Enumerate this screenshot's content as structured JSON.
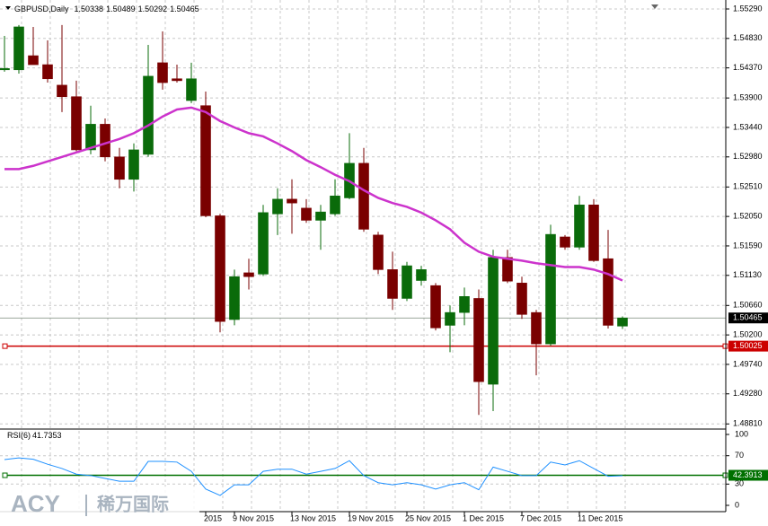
{
  "chart_data": {
    "type": "candlestick",
    "title": "GBPUSD,Daily",
    "categories": [
      null,
      null,
      null,
      null,
      null,
      null,
      null,
      null,
      null,
      null,
      null,
      null,
      null,
      null,
      "2015",
      null,
      "9 Nov 2015",
      null,
      null,
      null,
      "13 Nov 2015",
      null,
      null,
      null,
      "19 Nov 2015",
      null,
      null,
      null,
      "25 Nov 2015",
      null,
      null,
      null,
      "1 Dec 2015",
      null,
      null,
      null,
      "7 Dec 2015",
      null,
      null,
      null,
      "11 Dec 2015",
      null,
      null,
      null
    ],
    "open": [
      1.5434,
      1.5434,
      1.5456,
      1.5442,
      1.541,
      1.5392,
      1.5309,
      1.5349,
      1.5298,
      1.5263,
      1.5302,
      1.5445,
      1.542,
      1.5386,
      1.5378,
      1.5206,
      1.5044,
      1.5117,
      1.5115,
      1.5209,
      1.5232,
      1.5218,
      1.5199,
      1.5209,
      1.5234,
      1.5288,
      1.5176,
      1.5122,
      1.5077,
      1.5105,
      1.5097,
      1.5035,
      1.5055,
      1.5077,
      1.4943,
      1.5141,
      1.5101,
      1.5055,
      1.5006,
      1.5173,
      1.5157,
      1.5223,
      1.5139,
      1.50338
    ],
    "high": [
      1.5487,
      1.5504,
      1.5501,
      1.548,
      1.5504,
      1.5417,
      1.5378,
      1.5358,
      1.5312,
      1.5319,
      1.5473,
      1.5494,
      1.5442,
      1.5445,
      1.54,
      1.5209,
      1.5122,
      1.5139,
      1.5223,
      1.5249,
      1.5263,
      1.5232,
      1.5223,
      1.5263,
      1.5335,
      1.5312,
      1.5181,
      1.515,
      1.5134,
      1.5128,
      1.5101,
      1.5066,
      1.5094,
      1.5091,
      1.5153,
      1.5153,
      1.5111,
      1.5059,
      1.5192,
      1.5176,
      1.5237,
      1.5232,
      1.5184,
      1.50489
    ],
    "low": [
      1.5431,
      1.5428,
      1.5442,
      1.5414,
      1.5368,
      1.5307,
      1.5302,
      1.5291,
      1.5249,
      1.5244,
      1.5298,
      1.5403,
      1.5414,
      1.5382,
      1.5204,
      1.5024,
      1.5035,
      1.5091,
      1.5112,
      1.5176,
      1.5178,
      1.5195,
      1.5153,
      1.5206,
      1.5232,
      1.5181,
      1.5115,
      1.5059,
      1.5073,
      1.5097,
      1.5027,
      1.4993,
      1.5035,
      1.4895,
      1.4901,
      1.5101,
      1.5045,
      1.4957,
      1.5003,
      1.5153,
      1.5153,
      1.5134,
      1.503,
      1.50292
    ],
    "close": [
      1.5436,
      1.5501,
      1.5442,
      1.542,
      1.5392,
      1.5309,
      1.5349,
      1.5298,
      1.5263,
      1.5309,
      1.5424,
      1.5414,
      1.5417,
      1.542,
      1.5206,
      1.5041,
      1.5111,
      1.5111,
      1.5211,
      1.5232,
      1.5226,
      1.5199,
      1.5212,
      1.5237,
      1.5288,
      1.5185,
      1.5122,
      1.5077,
      1.5128,
      1.5122,
      1.5031,
      1.5055,
      1.508,
      1.4947,
      1.5141,
      1.5104,
      1.5052,
      1.5006,
      1.5177,
      1.5157,
      1.5223,
      1.5136,
      1.5035,
      1.50465
    ],
    "up_color": "#0a6b0a",
    "down_color": "#7a0000",
    "ma": {
      "color": "#cc33cc",
      "values": [
        1.5279,
        1.5279,
        1.5284,
        1.5291,
        1.5298,
        1.5305,
        1.5312,
        1.5319,
        1.5326,
        1.5335,
        1.5347,
        1.5361,
        1.5372,
        1.5375,
        1.5368,
        1.5354,
        1.5344,
        1.5335,
        1.533,
        1.5319,
        1.5307,
        1.5293,
        1.5282,
        1.527,
        1.526,
        1.5246,
        1.5234,
        1.5226,
        1.522,
        1.5211,
        1.5199,
        1.5185,
        1.5164,
        1.515,
        1.5142,
        1.5139,
        1.5136,
        1.5132,
        1.5129,
        1.5126,
        1.5126,
        1.5122,
        1.5115,
        1.5105
      ]
    },
    "level": 1.50025,
    "level_color": "#cc0000",
    "ylim": [
      1.4873,
      1.5543
    ],
    "yticks": [
      {
        "value": 1.5529,
        "label": "1.55290"
      },
      {
        "value": 1.5483,
        "label": "1.54830"
      },
      {
        "value": 1.5437,
        "label": "1.54370"
      },
      {
        "value": 1.539,
        "label": "1.53900"
      },
      {
        "value": 1.5344,
        "label": "1.53440"
      },
      {
        "value": 1.5298,
        "label": "1.52980"
      },
      {
        "value": 1.5251,
        "label": "1.52510"
      },
      {
        "value": 1.5205,
        "label": "1.52050"
      },
      {
        "value": 1.5159,
        "label": "1.51590"
      },
      {
        "value": 1.5113,
        "label": "1.51130"
      },
      {
        "value": 1.5066,
        "label": "1.50660"
      },
      {
        "value": 1.502,
        "label": "1.50200"
      },
      {
        "value": 1.4974,
        "label": "1.49740"
      },
      {
        "value": 1.4928,
        "label": "1.49280"
      },
      {
        "value": 1.4881,
        "label": "1.48810"
      }
    ],
    "grid": true,
    "rsi": {
      "title": "RSI(6)",
      "color": "#1e90ff",
      "values": [
        64.6,
        67,
        65,
        58,
        52,
        44,
        42,
        38,
        34,
        34,
        62,
        62,
        61,
        48,
        23,
        14,
        29,
        29,
        48,
        51,
        51,
        44,
        48,
        52,
        63,
        42,
        32,
        29,
        32,
        29,
        23,
        29,
        32,
        22,
        54,
        48,
        42,
        42,
        61,
        57,
        63,
        52,
        41,
        41.7353
      ],
      "level": 42.3913,
      "level_color": "#007000",
      "ylim": [
        0,
        100
      ],
      "yticks": [
        0,
        30,
        70,
        100
      ]
    },
    "watermark": {
      "brand": "ACY",
      "name": "稀万国际"
    }
  }
}
